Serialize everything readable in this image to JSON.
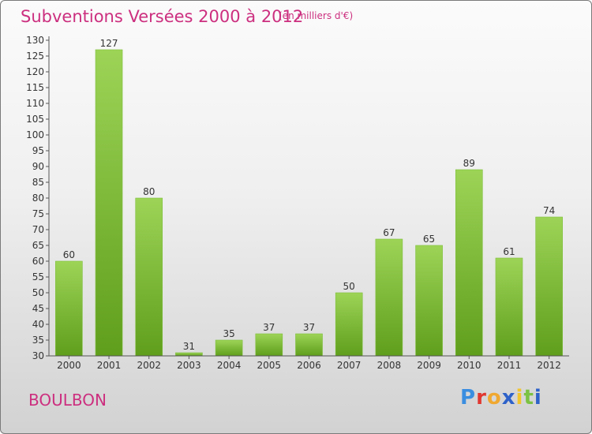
{
  "header": {
    "title": "Subventions Versées 2000 à 2012",
    "subtitle": "(en milliers d'€)"
  },
  "footer": {
    "commune": "BOULBON",
    "logo_text": "Proxiti"
  },
  "colors": {
    "accent": "#cc2f7f",
    "bar_top": "#9dd457",
    "bar_bottom": "#5f9e1c"
  },
  "chart_data": {
    "type": "bar",
    "title": "Subventions Versées 2000 à 2012",
    "subtitle": "(en milliers d'€)",
    "xlabel": "",
    "ylabel": "",
    "categories": [
      "2000",
      "2001",
      "2002",
      "2003",
      "2004",
      "2005",
      "2006",
      "2007",
      "2008",
      "2009",
      "2010",
      "2011",
      "2012"
    ],
    "values": [
      60,
      127,
      80,
      31,
      35,
      37,
      37,
      50,
      67,
      65,
      89,
      61,
      74
    ],
    "ylim": [
      30,
      130
    ],
    "yticks": [
      30,
      35,
      40,
      45,
      50,
      55,
      60,
      65,
      70,
      75,
      80,
      85,
      90,
      95,
      100,
      105,
      110,
      115,
      120,
      125,
      130
    ],
    "grid": false,
    "legend": "none"
  }
}
